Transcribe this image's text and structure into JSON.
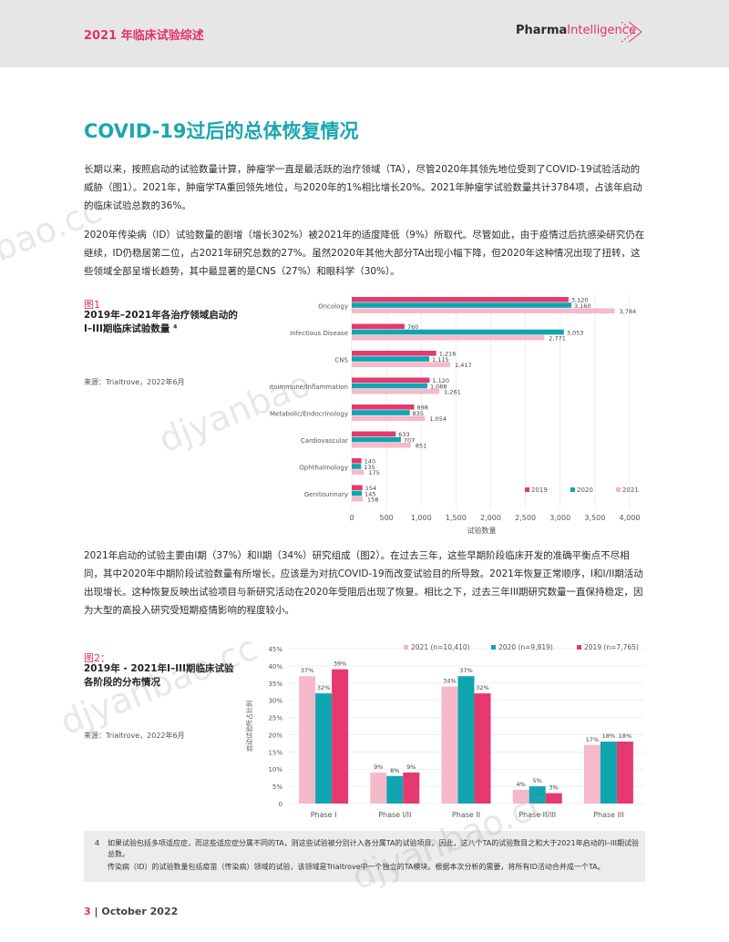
{
  "header": {
    "title": "2021 年临床试验综述",
    "logo_pharma": "Pharma",
    "logo_intelligence": "Intelligence"
  },
  "section_title": "COVID-19过后的总体恢复情况",
  "paragraphs": {
    "p1": "长期以来，按照启动的试验数量计算，肿瘤学一直是最活跃的治疗领域（TA），尽管2020年其领先地位受到了COVID-19试验活动的威胁（图1）。2021年，肿瘤学TA重回领先地位，与2020年的1%相比增长20%。2021年肿瘤学试验数量共计3784项，占该年启动的临床试验总数的36%。",
    "p2": "2020年传染病（ID）试验数量的剧增（增长302%）被2021年的适度降低（9%）所取代。尽管如此，由于疫情过后抗感染研究仍在继续，ID仍稳居第二位，占2021年研究总数的27%。虽然2020年其他大部分TA出现小幅下降，但2020年这种情况出现了扭转，这些领域全部呈增长趋势，其中最显著的是CNS（27%）和眼科学（30%）。",
    "p3": "2021年启动的试验主要由I期（37%）和II期（34%）研究组成（图2）。在过去三年，这些早期阶段临床开发的准确平衡点不尽相同，其中2020年中期阶段试验数量有所增长，应该是为对抗COVID-19而改变试验目的所导致。2021年恢复正常顺序，I和I/II期活动出现增长。这种恢复反映出试验项目与新研究活动在2020年受阻后出现了恢复。相比之下，过去三年III期研究数量一直保持稳定，因为大型的高投入研究受短期疫情影响的程度较小。"
  },
  "figure1": {
    "label": "图1",
    "title": "2019年–2021年各治疗领域启动的I–III期临床试验数量 ⁴",
    "source": "来源：Trialtrove，2022年6月"
  },
  "figure2": {
    "label": "图2：",
    "title": "2019年 - 2021年I–III期临床试验各阶段的分布情况",
    "source": "来源：Trialtrove，2022年6月"
  },
  "colors": {
    "y2019": "#e5396f",
    "y2020": "#10a5b1",
    "y2021": "#f6b9ca",
    "accent": "#e0326b",
    "heading": "#1aa6b0"
  },
  "chart_data": [
    {
      "type": "bar",
      "orientation": "horizontal",
      "categories": [
        "Oncology",
        "Infectious Disease",
        "CNS",
        "Autoimmune/Inflammation",
        "Metabolic/Endocrinology",
        "Cardiovascular",
        "Ophthalmology",
        "Genitourinary"
      ],
      "series": [
        {
          "name": "2019",
          "values": [
            3120,
            760,
            1216,
            1120,
            898,
            633,
            140,
            154
          ],
          "labels": [
            "3,120",
            "760",
            "1,216",
            "1,120",
            "898",
            "633",
            "140",
            "154"
          ]
        },
        {
          "name": "2020",
          "values": [
            3160,
            3053,
            1115,
            1088,
            835,
            707,
            135,
            145
          ],
          "labels": [
            "3,160",
            "3,053",
            "1,115",
            "1,088",
            "835",
            "707",
            "135",
            "145"
          ]
        },
        {
          "name": "2021",
          "values": [
            3784,
            2771,
            1417,
            1261,
            1054,
            851,
            175,
            158
          ],
          "labels": [
            "3,784",
            "2,771",
            "1,417",
            "1,261",
            "1,054",
            "851",
            "175",
            "158"
          ]
        }
      ],
      "xlabel": "试验数量",
      "xlim": [
        0,
        4000
      ],
      "xticks": [
        "0",
        "500",
        "1,000",
        "1,500",
        "2,000",
        "2,500",
        "3,000",
        "3,500",
        "4,000"
      ],
      "legend": "bottom-right"
    },
    {
      "type": "bar",
      "categories": [
        "Phase I",
        "Phase I/II",
        "Phase II",
        "Phase II/III",
        "Phase III"
      ],
      "series": [
        {
          "name": "2021 (n=10,410)",
          "values": [
            37,
            9,
            34,
            4,
            17
          ],
          "labels": [
            "37%",
            "9%",
            "34%",
            "4%",
            "17%"
          ]
        },
        {
          "name": "2020 (n=9,819)",
          "values": [
            32,
            8,
            37,
            5,
            18
          ],
          "labels": [
            "32%",
            "8%",
            "37%",
            "5%",
            "18%"
          ]
        },
        {
          "name": "2019 (n=7,765)",
          "values": [
            39,
            9,
            32,
            3,
            18
          ],
          "labels": [
            "39%",
            "9%",
            "32%",
            "3%",
            "18%"
          ]
        }
      ],
      "ylabel": "启动试验所占比例",
      "ylim": [
        0,
        45
      ],
      "yticks": [
        "0",
        "5%",
        "10%",
        "15%",
        "20%",
        "25%",
        "30%",
        "35%",
        "40%",
        "45%"
      ],
      "legend": "top"
    }
  ],
  "note": {
    "num": "4",
    "line1": "如果试验包括多项适应症，而这些适应症分属不同的TA，则这些试验被分别计入各分属TA的试验项目。因此，这八个TA的试验数目之和大于2021年启动的I–III期试验总数。",
    "line2": "传染病（ID）的试验数量包括疫苗（传染病）领域的试验，该领域是Trialtrove中一个独立的TA模块。根据本次分析的需要，将所有ID活动合并成一个TA。"
  },
  "footer": {
    "page": "3",
    "sep": "|",
    "date": "October 2022"
  },
  "watermarks": [
    "bao.cc",
    "djyanbao",
    "djyanbao.cc",
    "djyanbao.cc"
  ]
}
